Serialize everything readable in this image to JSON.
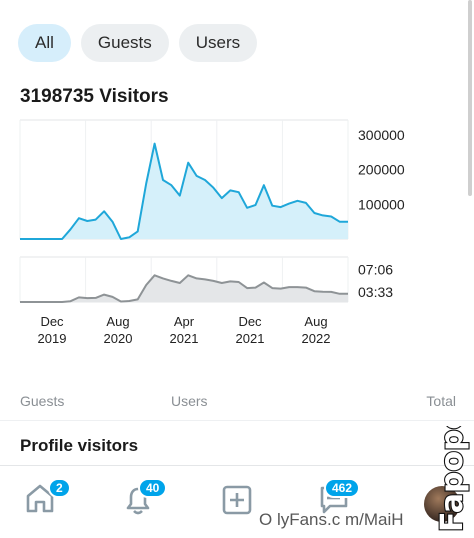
{
  "filters": {
    "all": "All",
    "guests": "Guests",
    "users": "Users",
    "active": "All"
  },
  "visitors": {
    "count": "3198735",
    "label": "Visitors"
  },
  "chart_data": [
    {
      "type": "area",
      "title": "",
      "x_ticks": [
        "Dec 2019",
        "Aug 2020",
        "Apr 2021",
        "Dec 2021",
        "Aug 2022"
      ],
      "y_ticks": [
        "300000",
        "200000",
        "100000"
      ],
      "ylim": [
        0,
        320000
      ],
      "color": "#1fa7d9",
      "fill": "#d5f0fa",
      "values": [
        0,
        0,
        0,
        0,
        0,
        0,
        28000,
        60000,
        52000,
        56000,
        80000,
        50000,
        0,
        5000,
        22000,
        160000,
        275000,
        170000,
        155000,
        125000,
        220000,
        182000,
        170000,
        148000,
        118000,
        140000,
        135000,
        90000,
        98000,
        155000,
        96000,
        92000,
        102000,
        110000,
        104000,
        75000,
        68000,
        65000,
        50000,
        50000
      ]
    },
    {
      "type": "area",
      "title": "",
      "x_ticks": [
        "Dec 2019",
        "Aug 2020",
        "Apr 2021",
        "Dec 2021",
        "Aug 2022"
      ],
      "y_ticks": [
        "07:06",
        "03:33"
      ],
      "color": "#8e9396",
      "fill": "#e4e6e8",
      "values": [
        0,
        0,
        0,
        0,
        0,
        0,
        0.08,
        0.45,
        0.38,
        0.4,
        0.72,
        0.5,
        0.05,
        0.1,
        0.25,
        1.65,
        2.6,
        2.3,
        2.05,
        1.85,
        2.6,
        2.3,
        2.2,
        2.05,
        1.85,
        2.0,
        1.95,
        1.35,
        1.4,
        1.9,
        1.35,
        1.3,
        1.45,
        1.45,
        1.4,
        1.05,
        1.0,
        0.98,
        0.8,
        0.8
      ],
      "ylim": [
        0,
        3.6
      ]
    }
  ],
  "columns": {
    "guests": "Guests",
    "users": "Users",
    "total": "Total"
  },
  "profile_visitors": "Profile visitors",
  "nav": {
    "home_badge": "2",
    "notifications_badge": "40",
    "messages_badge": "462"
  },
  "watermark": {
    "url": "O lyFans.c m/MaiH",
    "logo": "Fapopedia"
  }
}
